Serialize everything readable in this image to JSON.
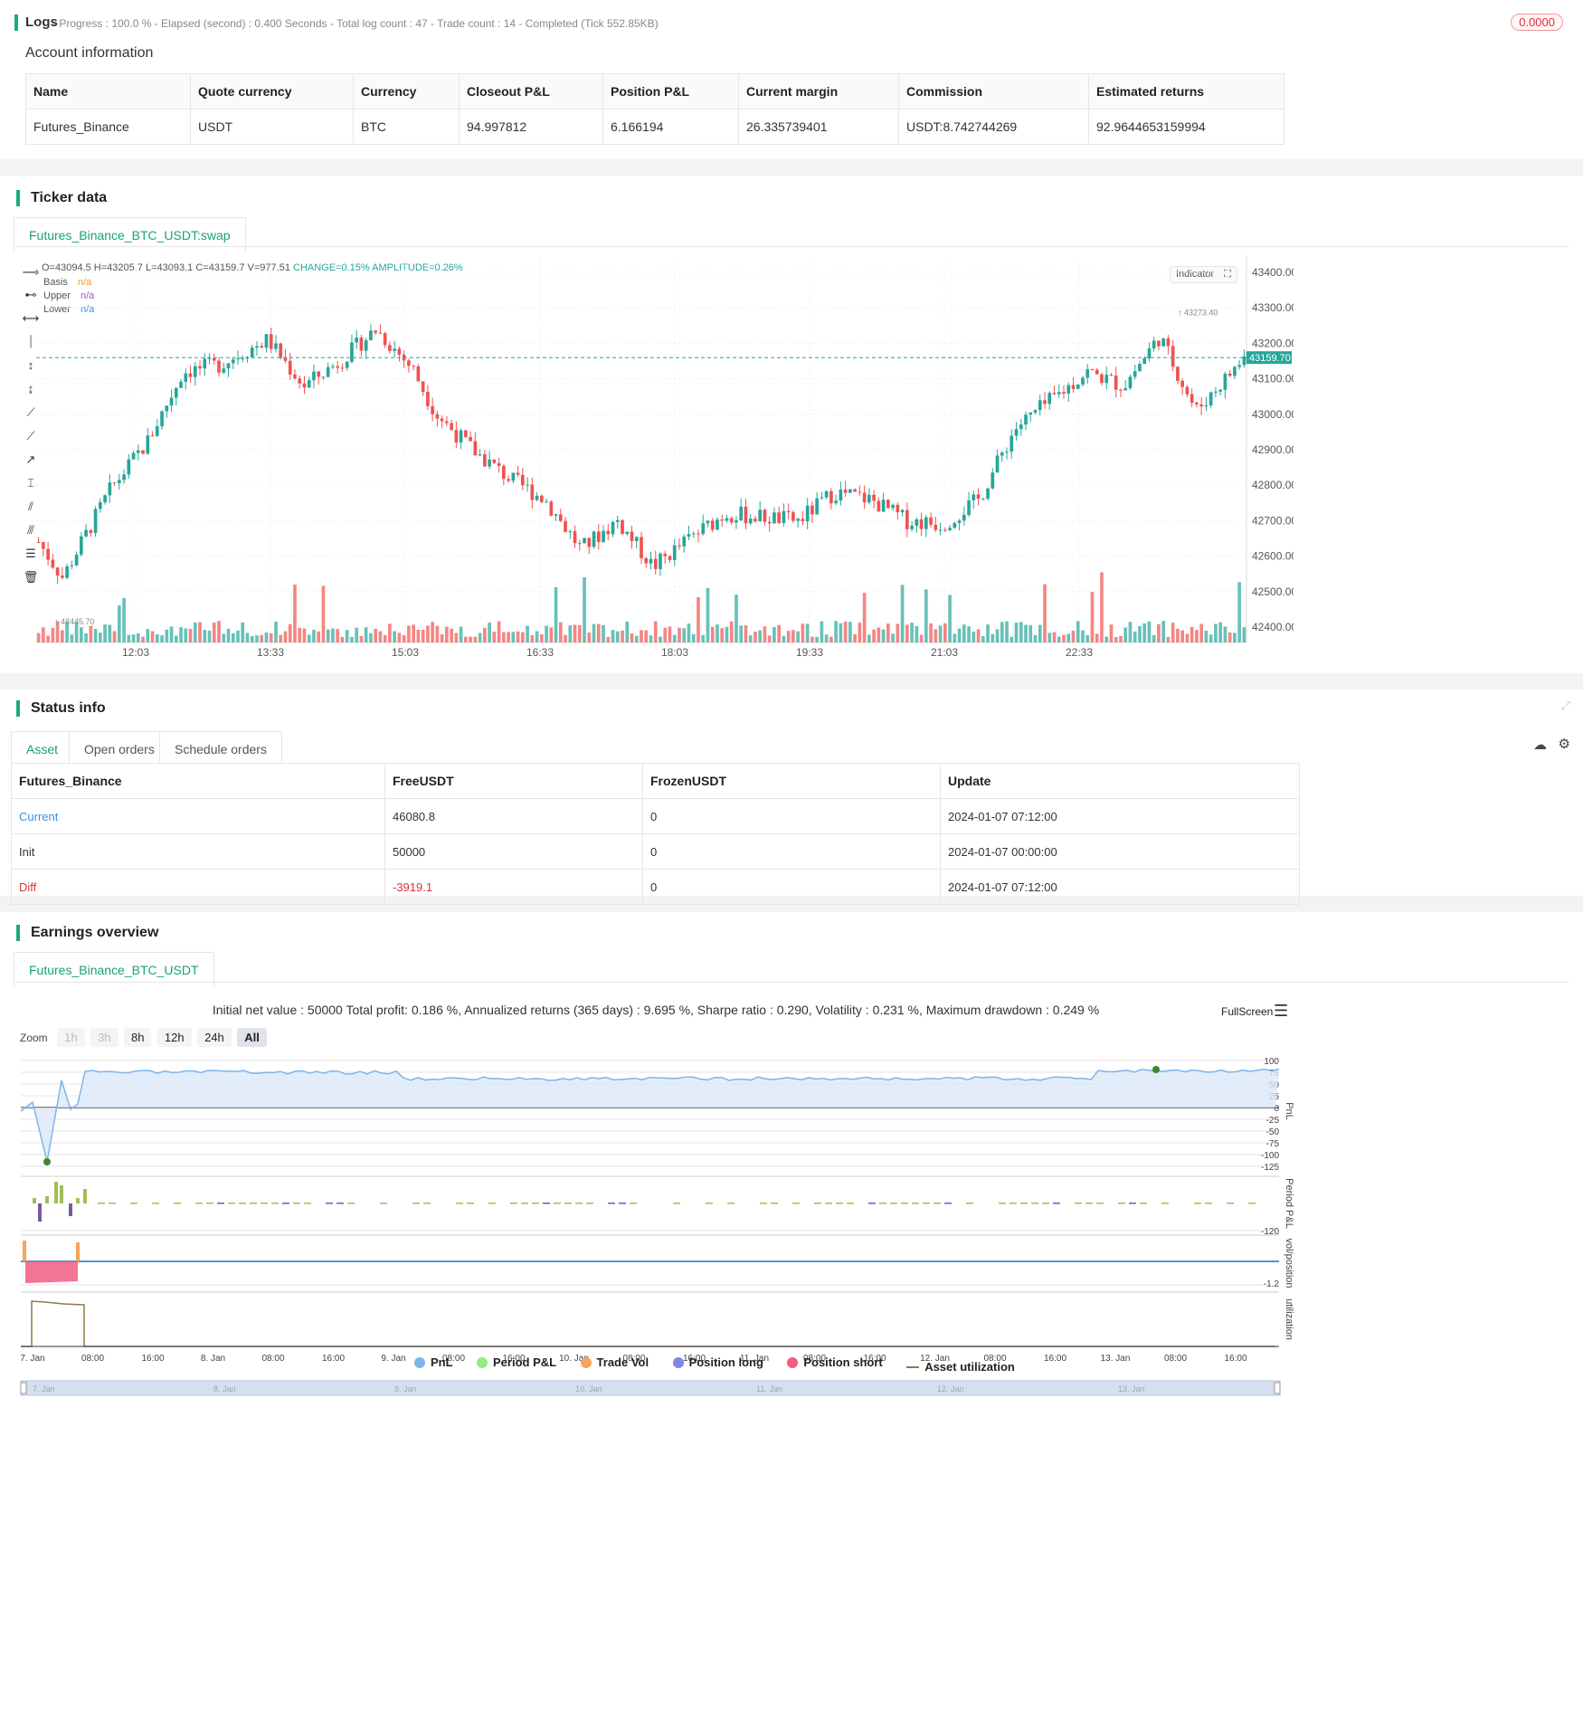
{
  "logs": {
    "title": "Logs",
    "status_line": "- Progress : 100.0 % - Elapsed (second) : 0.400  Seconds - Total log count : 47 - Trade count : 14 - Completed (Tick 552.85KB)",
    "badge": "0.0000"
  },
  "account": {
    "title": "Account information",
    "headers": [
      "Name",
      "Quote currency",
      "Currency",
      "Closeout P&L",
      "Position P&L",
      "Current margin",
      "Commission",
      "Estimated returns"
    ],
    "row": [
      "Futures_Binance",
      "USDT",
      "BTC",
      "94.997812",
      "6.166194",
      "26.335739401",
      "USDT:8.742744269",
      "92.9644653159994"
    ]
  },
  "ticker": {
    "title": "Ticker data",
    "tab": "Futures_Binance_BTC_USDT:swap",
    "ohlc_prefix": "O=43094.5 H=43205.7 L=43093.1 C=43159.7 V=977.51",
    "change": "CHANGE=0.15%",
    "amplitude": "AMPLITUDE=0.26%",
    "indicators": [
      {
        "name": "Basis",
        "value": "n/a",
        "color": "#f0a020"
      },
      {
        "name": "Upper",
        "value": "n/a",
        "color": "#9b59b6"
      },
      {
        "name": "Lower",
        "value": "n/a",
        "color": "#3b8de0"
      }
    ],
    "indicator_button": "Indicator",
    "last_price": "43159.70",
    "high_marker": "43273.40",
    "low_marker": "42445.70",
    "y_ticks": [
      "43400.00",
      "43300.00",
      "43200.00",
      "43100.00",
      "43000.00",
      "42900.00",
      "42800.00",
      "42700.00",
      "42600.00",
      "42500.00",
      "42400.00"
    ],
    "x_ticks": [
      "12:03",
      "13:33",
      "15:03",
      "16:33",
      "18:03",
      "19:33",
      "21:03",
      "22:33"
    ],
    "colors": {
      "up": "#26a69a",
      "down": "#ef5350"
    }
  },
  "status": {
    "title": "Status info",
    "tabs": [
      "Asset",
      "Open orders",
      "Schedule orders"
    ],
    "headers": [
      "Futures_Binance",
      "FreeUSDT",
      "FrozenUSDT",
      "Update"
    ],
    "rows": [
      [
        "Current",
        "46080.8",
        "0",
        "2024-01-07 07:12:00"
      ],
      [
        "Init",
        "50000",
        "0",
        "2024-01-07 00:00:00"
      ],
      [
        "Diff",
        "-3919.1",
        "0",
        "2024-01-07 07:12:00"
      ]
    ]
  },
  "earnings": {
    "title": "Earnings overview",
    "tab": "Futures_Binance_BTC_USDT",
    "summary": "Initial net value : 50000 Total profit: 0.186 %, Annualized returns (365 days) : 9.695 %, Sharpe ratio : 0.290, Volatility : 0.231 %, Maximum drawdown : 0.249 %",
    "fullscreen": "FullScreen",
    "zoom_label": "Zoom",
    "zoom_options": [
      "1h",
      "3h",
      "8h",
      "12h",
      "24h",
      "All"
    ],
    "pnl_ticks": [
      "100",
      "75",
      "50",
      "25",
      "0",
      "-25",
      "-50",
      "-75",
      "-100",
      "-125"
    ],
    "period_tick": "-120",
    "vol_tick": "-1.2",
    "axis_titles": [
      "PnL",
      "Period P&L",
      "vol/position",
      "utilization"
    ],
    "x_ticks": [
      "7. Jan",
      "08:00",
      "16:00",
      "8. Jan",
      "08:00",
      "16:00",
      "9. Jan",
      "08:00",
      "16:00",
      "10. Jan",
      "08:00",
      "16:00",
      "11. Jan",
      "08:00",
      "16:00",
      "12. Jan",
      "08:00",
      "16:00",
      "13. Jan",
      "08:00",
      "16:00"
    ],
    "nav_ticks": [
      "7. Jan",
      "8. Jan",
      "9. Jan",
      "10. Jan",
      "11. Jan",
      "12. Jan",
      "13. Jan"
    ],
    "legend": [
      {
        "name": "PnL",
        "color": "#7cb5ec"
      },
      {
        "name": "Period P&L",
        "color": "#90ed7d"
      },
      {
        "name": "Trade Vol",
        "color": "#f7a35c"
      },
      {
        "name": "Position long",
        "color": "#8085e9"
      },
      {
        "name": "Position short",
        "color": "#f15c80"
      },
      {
        "name": "Asset utilization",
        "color": "#8d7a4a"
      }
    ]
  },
  "chart_data": {
    "type": "candlestick",
    "title": "",
    "ylim": [
      42400,
      43400
    ],
    "last": 43159.7,
    "high": 43273.4,
    "low": 42445.7,
    "x_ticks": [
      "12:03",
      "13:33",
      "15:03",
      "16:33",
      "18:03",
      "19:33",
      "21:03",
      "22:33"
    ]
  }
}
